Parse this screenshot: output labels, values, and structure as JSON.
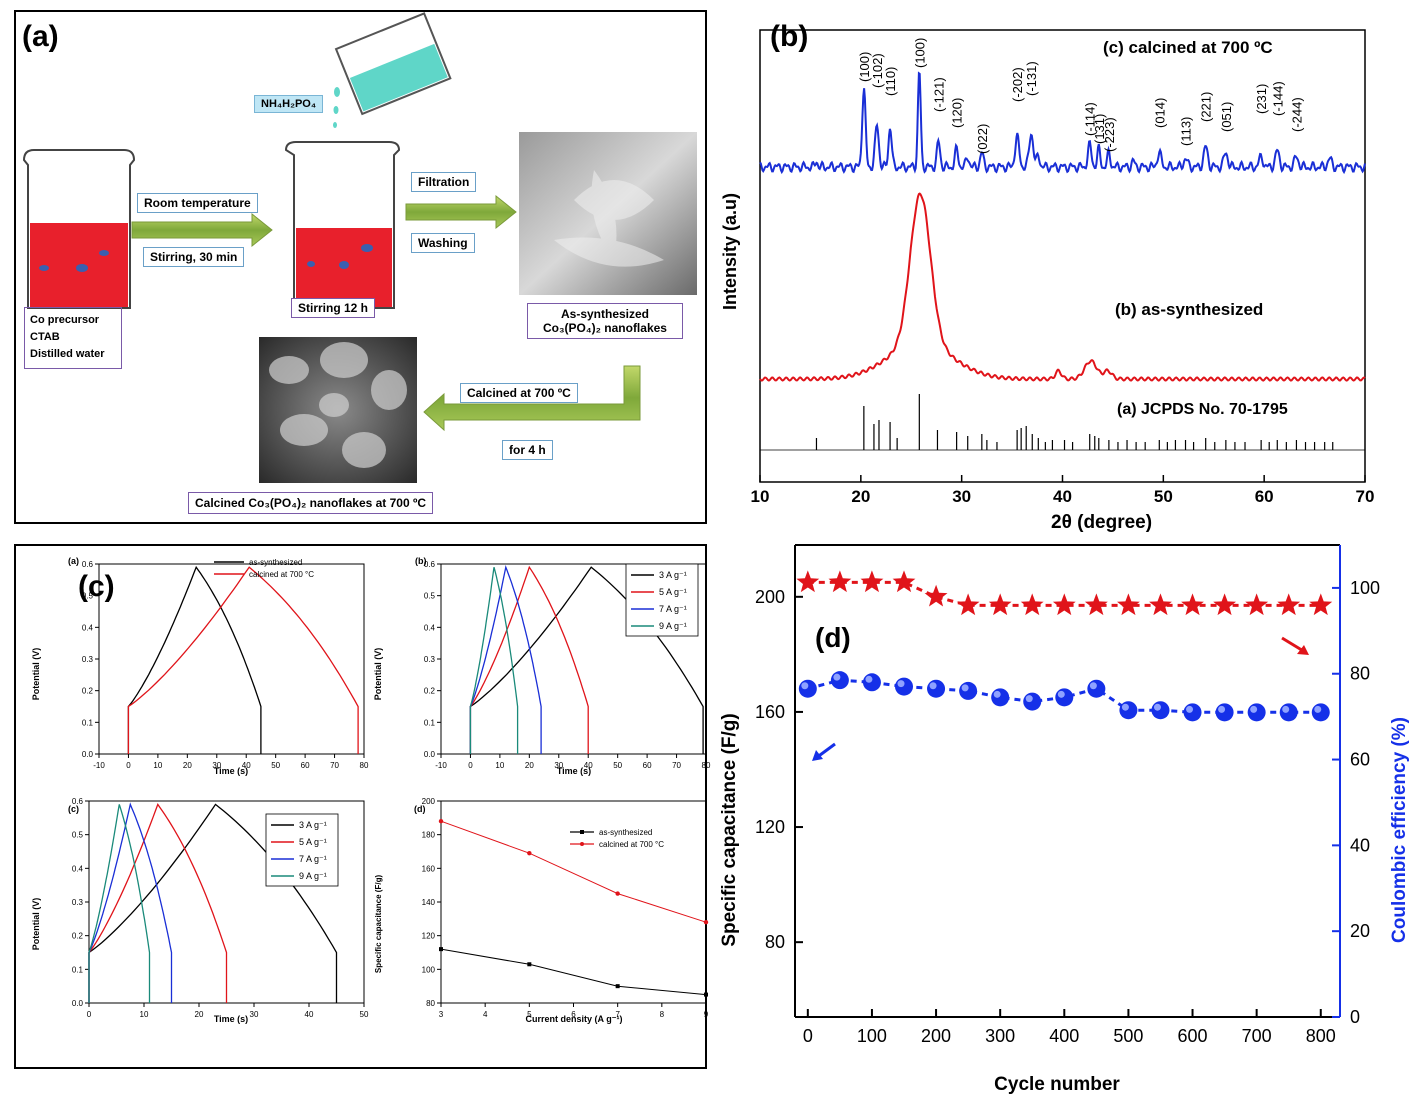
{
  "panel_a": {
    "tag": "(a)",
    "reagent": "NH₄H₂PO₄",
    "room_temp": "Room temperature",
    "stirring_30": "Stirring, 30 min",
    "stirring_12": "Stirring 12 h",
    "filtration": "Filtration",
    "washing": "Washing",
    "precursor_lines": [
      "Co precursor",
      "CTAB",
      "Distilled water"
    ],
    "as_synth_line1": "As-synthesized",
    "as_synth_line2": "Co₃(PO₄)₂ nanoflakes",
    "calcined_at": "Calcined at 700 ºC",
    "for_4h": "for 4 h",
    "calcined_caption": "Calcined Co₃(PO₄)₂ nanoflakes at 700 ºC"
  },
  "panel_b": {
    "tag": "(b)",
    "ylabel": "Intensity (a.u)",
    "xlabel": "2θ (degree)",
    "label_c": "(c) calcined at 700 ºC",
    "label_b": "(b) as-synthesized",
    "label_a": "(a) JCPDS No. 70-1795"
  },
  "panel_c": {
    "tag": "(c)",
    "sub_a": "(a)",
    "sub_b": "(b)",
    "sub_c": "(c)",
    "sub_d": "(d)",
    "potential_label": "Potential (V)",
    "time_label": "Time (s)",
    "cd_label": "Current density (A g⁻¹)",
    "sc_label": "Specific capacitance (F/g)",
    "legend_as": "as-synthesized",
    "legend_calc": "calcined at 700 °C",
    "rate_legend": [
      "3 A g⁻¹",
      "5 A g⁻¹",
      "7 A g⁻¹",
      "9 A g⁻¹"
    ]
  },
  "panel_d": {
    "tag": "(d)",
    "ylabel_left": "Specific capacitance (F/g)",
    "ylabel_right": "Coulombic efficiency (%)",
    "xlabel": "Cycle number"
  },
  "chart_data": [
    {
      "id": "xrd",
      "type": "line",
      "xlabel": "2θ (degree)",
      "ylabel": "Intensity (a.u)",
      "xlim": [
        10,
        70
      ],
      "xticks": [
        10,
        20,
        30,
        40,
        50,
        60,
        70
      ],
      "series": [
        {
          "name": "(c) calcined at 700 ºC",
          "color": "#1a2fd6"
        },
        {
          "name": "(b) as-synthesized",
          "color": "#e0141a"
        },
        {
          "name": "(a) JCPDS No. 70-1795",
          "color": "#000000"
        }
      ],
      "peak_labels": [
        {
          "x": 20.3,
          "label": "(100)"
        },
        {
          "x": 21.6,
          "label": "(-102)"
        },
        {
          "x": 22.9,
          "label": "(110)"
        },
        {
          "x": 25.8,
          "label": "(100)"
        },
        {
          "x": 27.7,
          "label": "(-121)"
        },
        {
          "x": 29.5,
          "label": "(120)"
        },
        {
          "x": 32.0,
          "label": "(022)"
        },
        {
          "x": 35.5,
          "label": "(-202)"
        },
        {
          "x": 36.9,
          "label": "(-131)"
        },
        {
          "x": 42.7,
          "label": "(-114)"
        },
        {
          "x": 43.6,
          "label": "(131)"
        },
        {
          "x": 44.6,
          "label": "(-223)"
        },
        {
          "x": 49.6,
          "label": "(014)"
        },
        {
          "x": 52.2,
          "label": "(113)"
        },
        {
          "x": 54.2,
          "label": "(221)"
        },
        {
          "x": 56.2,
          "label": "(051)"
        },
        {
          "x": 59.7,
          "label": "(231)"
        },
        {
          "x": 61.3,
          "label": "(-144)"
        },
        {
          "x": 63.2,
          "label": "(-244)"
        }
      ]
    },
    {
      "id": "gcd-a",
      "type": "line",
      "xlabel": "Time (s)",
      "ylabel": "Potential (V)",
      "xlim": [
        -10,
        80
      ],
      "ylim": [
        0,
        0.6
      ],
      "xticks": [
        -10,
        0,
        10,
        20,
        30,
        40,
        50,
        60,
        70,
        80
      ],
      "yticks": [
        0.0,
        0.1,
        0.2,
        0.3,
        0.4,
        0.5,
        0.6
      ],
      "series": [
        {
          "name": "as-synthesized",
          "color": "#000000",
          "charge_end_s": 23,
          "discharge_end_s": 45
        },
        {
          "name": "calcined at 700 °C",
          "color": "#e0141a",
          "charge_end_s": 41,
          "discharge_end_s": 78
        }
      ]
    },
    {
      "id": "gcd-b",
      "type": "line",
      "xlabel": "Time (s)",
      "ylabel": "Potential (V)",
      "xlim": [
        -10,
        80
      ],
      "ylim": [
        0,
        0.6
      ],
      "xticks": [
        -10,
        0,
        10,
        20,
        30,
        40,
        50,
        60,
        70,
        80
      ],
      "yticks": [
        0.0,
        0.1,
        0.2,
        0.3,
        0.4,
        0.5,
        0.6
      ],
      "series": [
        {
          "name": "3 A g⁻¹",
          "color": "#000000",
          "charge_end_s": 41,
          "discharge_end_s": 79
        },
        {
          "name": "5 A g⁻¹",
          "color": "#e0141a",
          "charge_end_s": 20,
          "discharge_end_s": 40
        },
        {
          "name": "7 A g⁻¹",
          "color": "#1a2fd6",
          "charge_end_s": 12,
          "discharge_end_s": 24
        },
        {
          "name": "9 A g⁻¹",
          "color": "#1a8a7a",
          "charge_end_s": 8,
          "discharge_end_s": 16
        }
      ]
    },
    {
      "id": "gcd-c",
      "type": "line",
      "xlabel": "Time (s)",
      "ylabel": "Potential (V)",
      "xlim": [
        0,
        50
      ],
      "ylim": [
        0,
        0.6
      ],
      "xticks": [
        0,
        10,
        20,
        30,
        40,
        50
      ],
      "yticks": [
        0.0,
        0.1,
        0.2,
        0.3,
        0.4,
        0.5,
        0.6
      ],
      "series": [
        {
          "name": "3 A g⁻¹",
          "color": "#000000",
          "charge_end_s": 23,
          "discharge_end_s": 45
        },
        {
          "name": "5 A g⁻¹",
          "color": "#e0141a",
          "charge_end_s": 12.5,
          "discharge_end_s": 25
        },
        {
          "name": "7 A g⁻¹",
          "color": "#1a2fd6",
          "charge_end_s": 7.5,
          "discharge_end_s": 15
        },
        {
          "name": "9 A g⁻¹",
          "color": "#1a8a7a",
          "charge_end_s": 5.5,
          "discharge_end_s": 11
        }
      ]
    },
    {
      "id": "rate",
      "type": "line",
      "xlabel": "Current density (A g⁻¹)",
      "ylabel": "Specific capacitance (F/g)",
      "xlim": [
        3,
        9
      ],
      "ylim": [
        80,
        200
      ],
      "xticks": [
        3,
        4,
        5,
        6,
        7,
        8,
        9
      ],
      "yticks": [
        80,
        100,
        120,
        140,
        160,
        180,
        200
      ],
      "x": [
        3,
        5,
        7,
        9
      ],
      "series": [
        {
          "name": "as-synthesized",
          "color": "#000000",
          "values": [
            112,
            103,
            90,
            85
          ]
        },
        {
          "name": "calcined at 700 °C",
          "color": "#e0141a",
          "values": [
            188,
            169,
            145,
            128
          ]
        }
      ]
    },
    {
      "id": "cycling",
      "type": "scatter",
      "xlabel": "Cycle number",
      "ylabel": "Specific capacitance (F/g)",
      "ylabel_right": "Coulombic efficiency (%)",
      "xlim": [
        -20,
        830
      ],
      "xticks": [
        0,
        100,
        200,
        300,
        400,
        500,
        600,
        700,
        800
      ],
      "ylim": [
        54,
        218
      ],
      "yticks": [
        80,
        120,
        160,
        200
      ],
      "ylim_right": [
        0,
        110
      ],
      "yticks_right": [
        0,
        20,
        40,
        60,
        80,
        100
      ],
      "x": [
        0,
        50,
        100,
        150,
        200,
        250,
        300,
        350,
        400,
        450,
        500,
        550,
        600,
        650,
        700,
        750,
        800
      ],
      "series": [
        {
          "name": "Specific capacitance",
          "axis": "left",
          "marker": "star",
          "color": "#e0141a",
          "values": [
            205,
            205,
            205,
            205,
            200,
            197,
            197,
            197,
            197,
            197,
            197,
            197,
            197,
            197,
            197,
            197,
            197
          ]
        },
        {
          "name": "Coulombic efficiency",
          "axis": "right",
          "marker": "sphere",
          "color": "#1530e8",
          "values": [
            76.5,
            78.5,
            78,
            77,
            76.5,
            76,
            74.5,
            73.5,
            74.5,
            76.5,
            71.5,
            71.5,
            71,
            71,
            71,
            71,
            71
          ]
        }
      ]
    }
  ]
}
